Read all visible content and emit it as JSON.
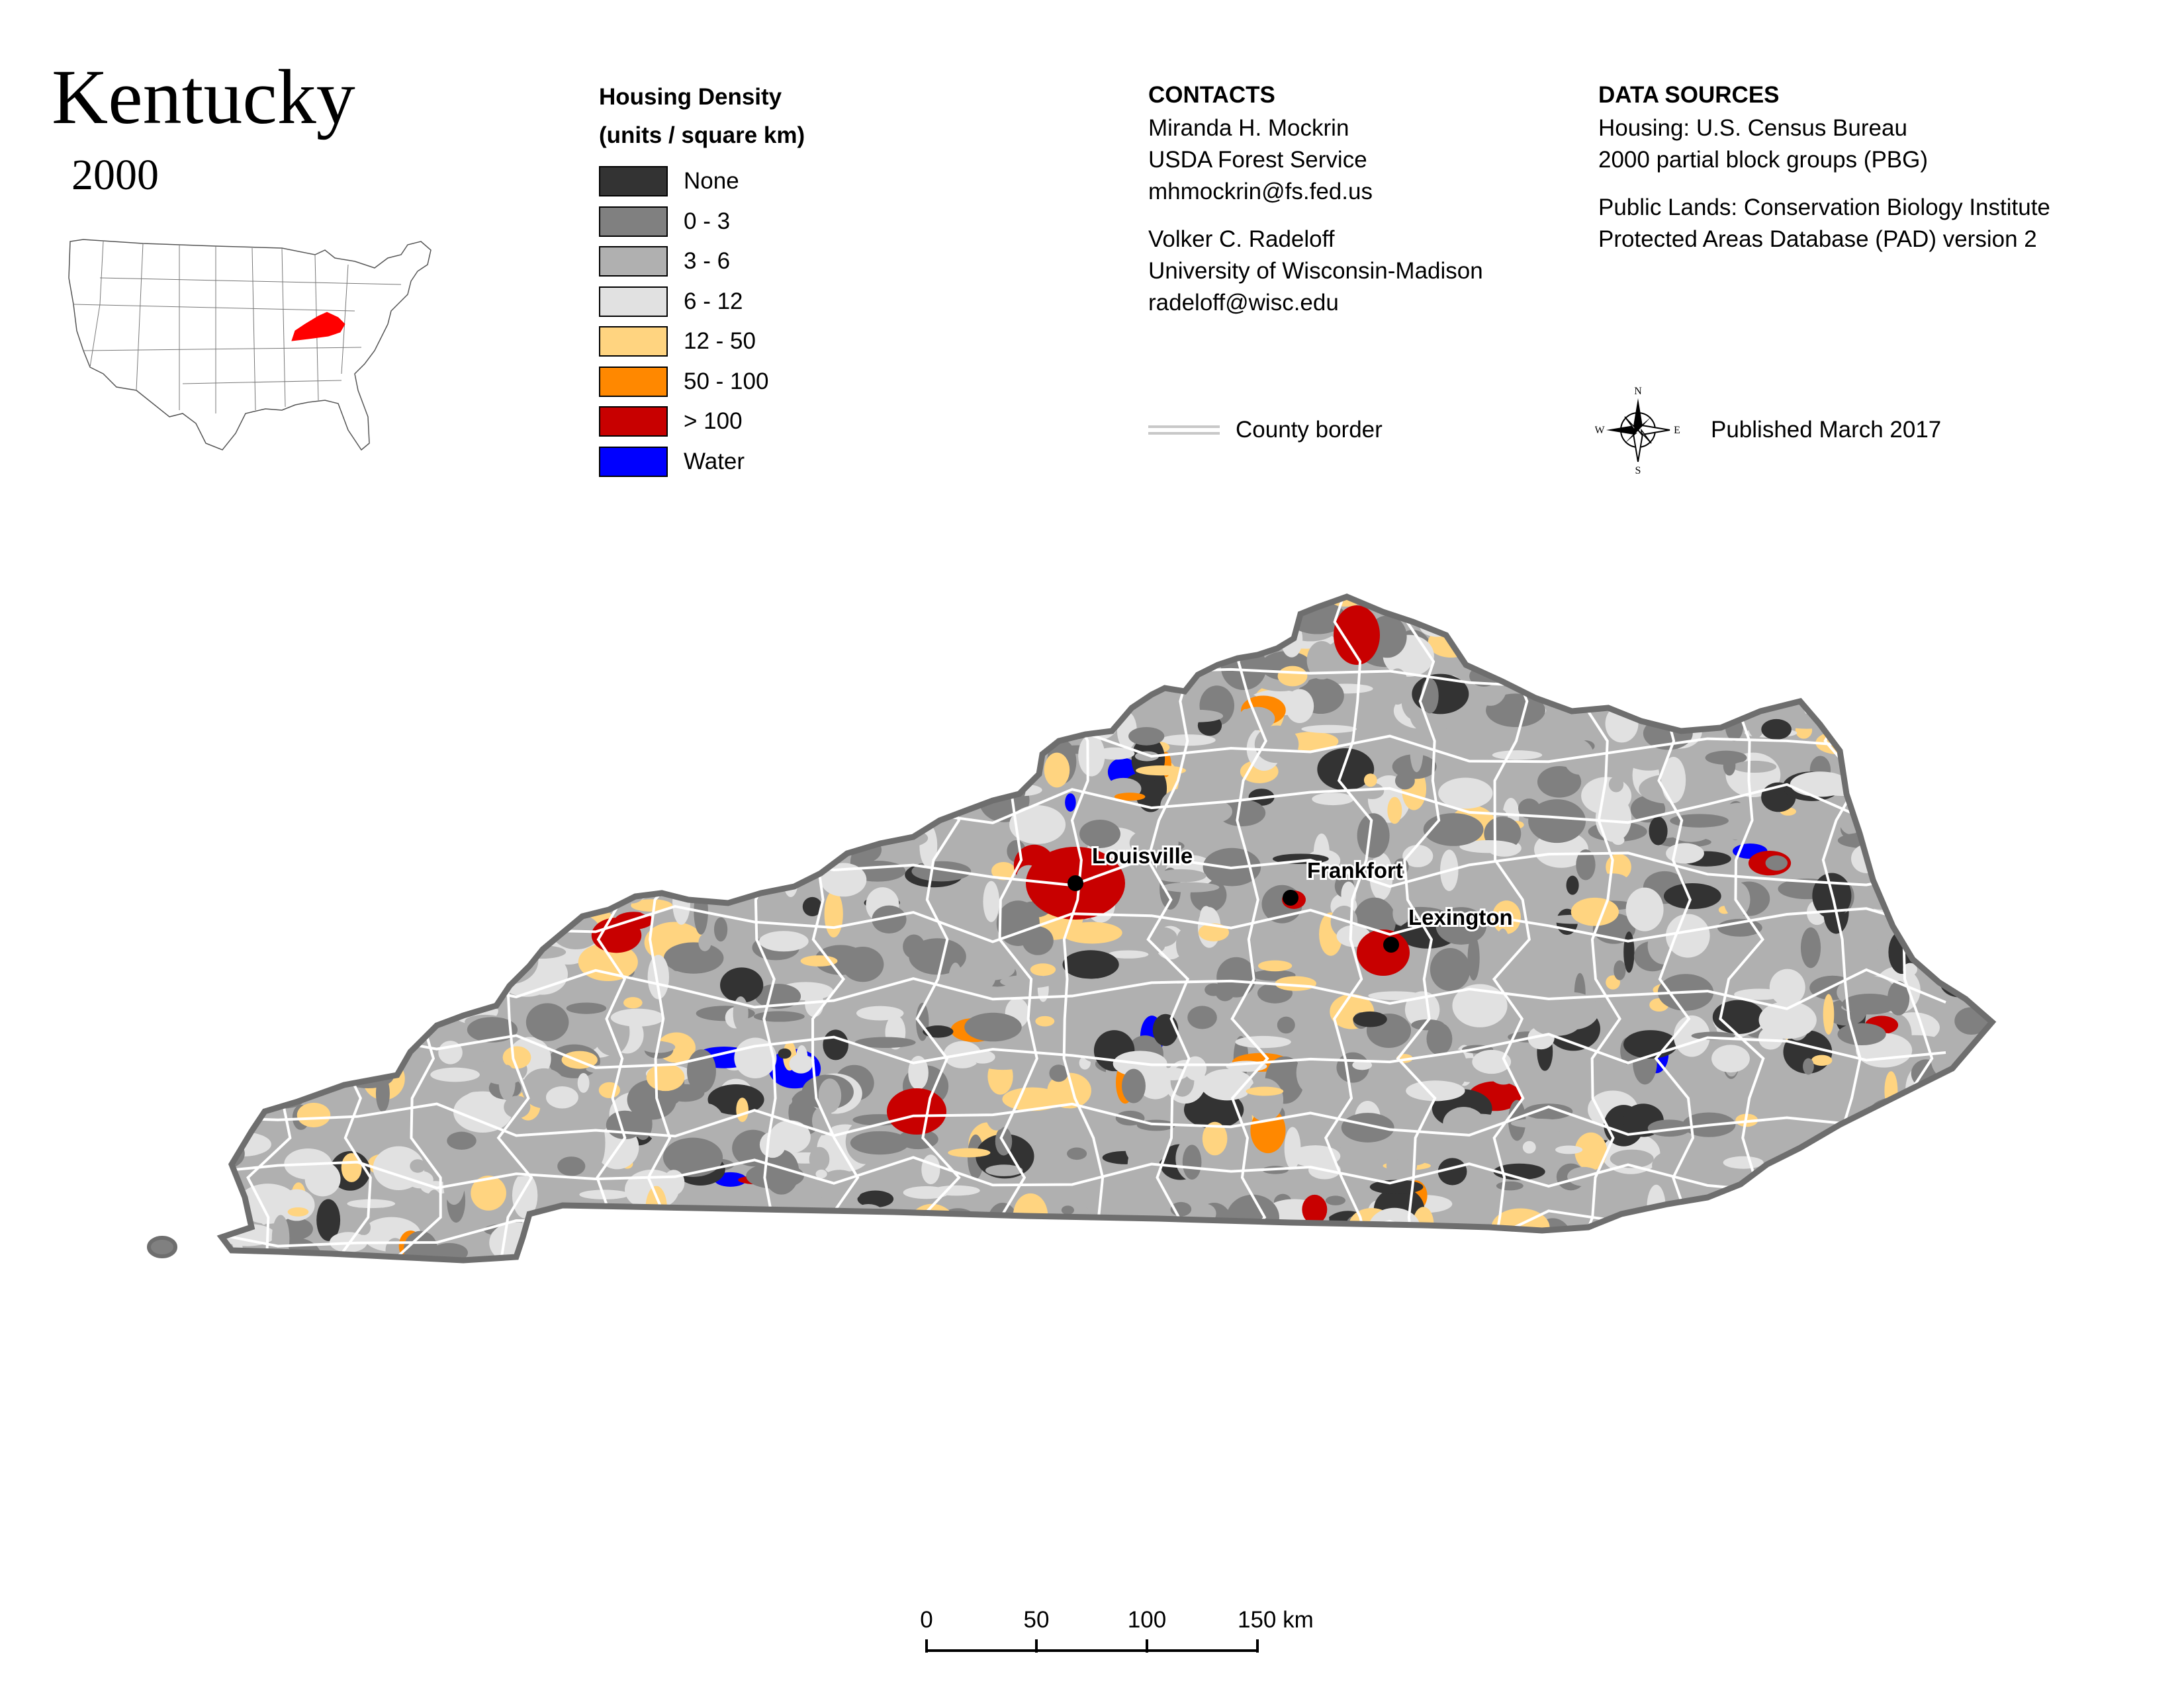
{
  "title": "Kentucky",
  "year": "2000",
  "legend": {
    "heading1": "Housing Density",
    "heading2": "(units / square km)",
    "items": [
      {
        "label": "None",
        "color": "#333333"
      },
      {
        "label": "0 - 3",
        "color": "#808080"
      },
      {
        "label": "3 - 6",
        "color": "#b0b0b0"
      },
      {
        "label": "6 - 12",
        "color": "#e1e1e1"
      },
      {
        "label": "12 - 50",
        "color": "#ffd480"
      },
      {
        "label": "50 - 100",
        "color": "#ff8800"
      },
      {
        "label": "> 100",
        "color": "#c80000"
      },
      {
        "label": "Water",
        "color": "#0000ff"
      }
    ]
  },
  "contacts": {
    "heading": "CONTACTS",
    "person1": {
      "name": "Miranda H. Mockrin",
      "org": "USDA Forest Service",
      "email": "mhmockrin@fs.fed.us"
    },
    "person2": {
      "name": "Volker C. Radeloff",
      "org": "University of Wisconsin-Madison",
      "email": "radeloff@wisc.edu"
    }
  },
  "sources": {
    "heading": "DATA SOURCES",
    "line1": "Housing: U.S. Census Bureau",
    "line2": "2000 partial block groups (PBG)",
    "line3": "Public Lands: Conservation Biology Institute",
    "line4": "Protected Areas Database (PAD) version 2"
  },
  "county_key": "County border",
  "published": "Published March 2017",
  "compass": {
    "n": "N",
    "s": "S",
    "e": "E",
    "w": "W"
  },
  "cities": [
    {
      "name": "Louisville"
    },
    {
      "name": "Frankfort"
    },
    {
      "name": "Lexington"
    }
  ],
  "scale_bar": {
    "ticks": [
      "0",
      "50",
      "100",
      "150 km"
    ]
  },
  "colors": {
    "state_border": "#6e6e6e",
    "county_line": "#ffffff",
    "highlight_state": "#ff0000"
  }
}
